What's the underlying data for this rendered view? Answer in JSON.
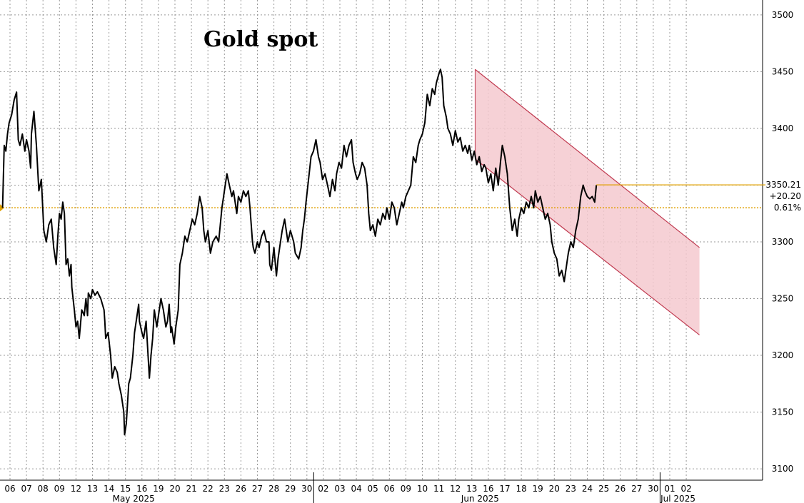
{
  "colors": {
    "price_line": "#000000",
    "grid": "#9a9a9a",
    "reference_line": "#e0a000",
    "channel_fill": "#f4c9cf",
    "channel_edge": "#c0394f",
    "badge_line": "#e0a000"
  },
  "chart_data": {
    "type": "line",
    "title": "Gold spot",
    "xlabel": "",
    "ylabel": "",
    "ylim": [
      3090,
      3510
    ],
    "y_ticks": [
      3100,
      3150,
      3200,
      3250,
      3300,
      3350,
      3400,
      3450,
      3500
    ],
    "x_labels": [
      "06",
      "07",
      "08",
      "09",
      "12",
      "13",
      "14",
      "15",
      "16",
      "19",
      "20",
      "21",
      "22",
      "23",
      "26",
      "27",
      "28",
      "29",
      "30",
      "02",
      "03",
      "04",
      "05",
      "06",
      "09",
      "10",
      "11",
      "12",
      "13",
      "16",
      "17",
      "18",
      "19",
      "20",
      "23",
      "24",
      "25",
      "26",
      "27",
      "30",
      "01",
      "02"
    ],
    "month_labels": [
      {
        "text": "May 2025",
        "at_index": 7.5
      },
      {
        "text": "Jun 2025",
        "at_index": 28.5
      },
      {
        "text": "Jul 2025",
        "at_index": 40.5
      }
    ],
    "month_separators": [
      18.5,
      39.5
    ],
    "reference_level": 3330,
    "last_price": {
      "value": "3350.21",
      "change": "+20.20",
      "pct": "0.61%"
    },
    "channel": {
      "upper": [
        {
          "x": 28.2,
          "y": 3452
        },
        {
          "x": 41.8,
          "y": 3295
        }
      ],
      "lower": [
        {
          "x": 28.2,
          "y": 3373
        },
        {
          "x": 41.8,
          "y": 3218
        }
      ]
    },
    "series": [
      {
        "points": [
          [
            -0.45,
            3330
          ],
          [
            -0.35,
            3385
          ],
          [
            -0.25,
            3380
          ],
          [
            -0.15,
            3395
          ],
          [
            -0.05,
            3405
          ],
          [
            0.1,
            3412
          ],
          [
            0.25,
            3425
          ],
          [
            0.4,
            3432
          ],
          [
            0.5,
            3390
          ],
          [
            0.6,
            3385
          ],
          [
            0.75,
            3395
          ],
          [
            0.9,
            3380
          ],
          [
            1.0,
            3390
          ],
          [
            1.15,
            3380
          ],
          [
            1.25,
            3365
          ],
          [
            1.3,
            3395
          ],
          [
            1.45,
            3415
          ],
          [
            1.6,
            3385
          ],
          [
            1.75,
            3345
          ],
          [
            1.9,
            3355
          ],
          [
            2.05,
            3310
          ],
          [
            2.2,
            3300
          ],
          [
            2.35,
            3315
          ],
          [
            2.5,
            3320
          ],
          [
            2.65,
            3295
          ],
          [
            2.8,
            3280
          ],
          [
            2.9,
            3305
          ],
          [
            3.0,
            3325
          ],
          [
            3.1,
            3320
          ],
          [
            3.2,
            3335
          ],
          [
            3.3,
            3325
          ],
          [
            3.4,
            3280
          ],
          [
            3.5,
            3285
          ],
          [
            3.6,
            3270
          ],
          [
            3.7,
            3280
          ],
          [
            3.75,
            3260
          ],
          [
            3.9,
            3240
          ],
          [
            4.0,
            3225
          ],
          [
            4.1,
            3230
          ],
          [
            4.2,
            3215
          ],
          [
            4.35,
            3240
          ],
          [
            4.5,
            3235
          ],
          [
            4.6,
            3250
          ],
          [
            4.7,
            3235
          ],
          [
            4.75,
            3255
          ],
          [
            4.9,
            3250
          ],
          [
            5.0,
            3258
          ],
          [
            5.15,
            3253
          ],
          [
            5.3,
            3256
          ],
          [
            5.5,
            3250
          ],
          [
            5.7,
            3240
          ],
          [
            5.75,
            3230
          ],
          [
            5.8,
            3215
          ],
          [
            5.95,
            3220
          ],
          [
            6.1,
            3200
          ],
          [
            6.2,
            3180
          ],
          [
            6.35,
            3190
          ],
          [
            6.5,
            3185
          ],
          [
            6.6,
            3175
          ],
          [
            6.75,
            3165
          ],
          [
            6.9,
            3150
          ],
          [
            6.95,
            3130
          ],
          [
            7.05,
            3140
          ],
          [
            7.2,
            3175
          ],
          [
            7.3,
            3180
          ],
          [
            7.45,
            3200
          ],
          [
            7.55,
            3220
          ],
          [
            7.7,
            3235
          ],
          [
            7.8,
            3245
          ],
          [
            7.85,
            3230
          ],
          [
            8.0,
            3220
          ],
          [
            8.1,
            3215
          ],
          [
            8.25,
            3230
          ],
          [
            8.35,
            3205
          ],
          [
            8.45,
            3180
          ],
          [
            8.55,
            3200
          ],
          [
            8.65,
            3215
          ],
          [
            8.75,
            3240
          ],
          [
            8.9,
            3225
          ],
          [
            9.0,
            3235
          ],
          [
            9.15,
            3250
          ],
          [
            9.3,
            3240
          ],
          [
            9.45,
            3225
          ],
          [
            9.55,
            3230
          ],
          [
            9.65,
            3245
          ],
          [
            9.75,
            3220
          ],
          [
            9.8,
            3225
          ],
          [
            9.95,
            3210
          ],
          [
            10.05,
            3225
          ],
          [
            10.2,
            3240
          ],
          [
            10.3,
            3280
          ],
          [
            10.45,
            3290
          ],
          [
            10.6,
            3305
          ],
          [
            10.75,
            3300
          ],
          [
            10.9,
            3310
          ],
          [
            11.05,
            3320
          ],
          [
            11.2,
            3315
          ],
          [
            11.35,
            3325
          ],
          [
            11.5,
            3340
          ],
          [
            11.65,
            3330
          ],
          [
            11.75,
            3310
          ],
          [
            11.85,
            3300
          ],
          [
            12.0,
            3310
          ],
          [
            12.15,
            3290
          ],
          [
            12.3,
            3300
          ],
          [
            12.5,
            3305
          ],
          [
            12.65,
            3300
          ],
          [
            12.75,
            3315
          ],
          [
            12.85,
            3330
          ],
          [
            13.0,
            3345
          ],
          [
            13.15,
            3360
          ],
          [
            13.3,
            3350
          ],
          [
            13.45,
            3340
          ],
          [
            13.55,
            3345
          ],
          [
            13.65,
            3335
          ],
          [
            13.75,
            3325
          ],
          [
            13.85,
            3340
          ],
          [
            14.0,
            3335
          ],
          [
            14.15,
            3345
          ],
          [
            14.3,
            3340
          ],
          [
            14.45,
            3345
          ],
          [
            14.55,
            3330
          ],
          [
            14.7,
            3300
          ],
          [
            14.75,
            3295
          ],
          [
            14.85,
            3290
          ],
          [
            15.0,
            3300
          ],
          [
            15.1,
            3295
          ],
          [
            15.25,
            3305
          ],
          [
            15.4,
            3310
          ],
          [
            15.55,
            3300
          ],
          [
            15.7,
            3300
          ],
          [
            15.75,
            3280
          ],
          [
            15.85,
            3275
          ],
          [
            16.0,
            3295
          ],
          [
            16.15,
            3270
          ],
          [
            16.25,
            3285
          ],
          [
            16.4,
            3300
          ],
          [
            16.5,
            3310
          ],
          [
            16.65,
            3320
          ],
          [
            16.75,
            3310
          ],
          [
            16.85,
            3300
          ],
          [
            17.0,
            3310
          ],
          [
            17.1,
            3305
          ],
          [
            17.2,
            3300
          ],
          [
            17.3,
            3290
          ],
          [
            17.5,
            3285
          ],
          [
            17.65,
            3295
          ],
          [
            17.75,
            3310
          ],
          [
            17.85,
            3320
          ],
          [
            17.95,
            3335
          ],
          [
            18.1,
            3355
          ],
          [
            18.25,
            3375
          ],
          [
            18.4,
            3380
          ],
          [
            18.55,
            3390
          ],
          [
            18.7,
            3375
          ],
          [
            18.8,
            3370
          ],
          [
            18.95,
            3355
          ],
          [
            19.1,
            3360
          ],
          [
            19.25,
            3350
          ],
          [
            19.4,
            3340
          ],
          [
            19.55,
            3355
          ],
          [
            19.7,
            3345
          ],
          [
            19.8,
            3360
          ],
          [
            19.95,
            3370
          ],
          [
            20.1,
            3365
          ],
          [
            20.25,
            3385
          ],
          [
            20.4,
            3375
          ],
          [
            20.55,
            3385
          ],
          [
            20.7,
            3390
          ],
          [
            20.8,
            3370
          ],
          [
            20.95,
            3360
          ],
          [
            21.05,
            3355
          ],
          [
            21.2,
            3360
          ],
          [
            21.35,
            3370
          ],
          [
            21.5,
            3365
          ],
          [
            21.65,
            3350
          ],
          [
            21.75,
            3325
          ],
          [
            21.85,
            3310
          ],
          [
            22.0,
            3315
          ],
          [
            22.15,
            3305
          ],
          [
            22.3,
            3320
          ],
          [
            22.45,
            3315
          ],
          [
            22.6,
            3325
          ],
          [
            22.75,
            3320
          ],
          [
            22.85,
            3330
          ],
          [
            23.0,
            3320
          ],
          [
            23.15,
            3335
          ],
          [
            23.3,
            3330
          ],
          [
            23.45,
            3315
          ],
          [
            23.6,
            3325
          ],
          [
            23.75,
            3335
          ],
          [
            23.85,
            3330
          ],
          [
            24.0,
            3340
          ],
          [
            24.15,
            3345
          ],
          [
            24.3,
            3350
          ],
          [
            24.45,
            3375
          ],
          [
            24.6,
            3370
          ],
          [
            24.75,
            3385
          ],
          [
            24.85,
            3390
          ],
          [
            25.0,
            3395
          ],
          [
            25.15,
            3405
          ],
          [
            25.3,
            3430
          ],
          [
            25.45,
            3420
          ],
          [
            25.6,
            3435
          ],
          [
            25.75,
            3430
          ],
          [
            25.85,
            3440
          ],
          [
            26.0,
            3448
          ],
          [
            26.1,
            3452
          ],
          [
            26.2,
            3445
          ],
          [
            26.3,
            3420
          ],
          [
            26.45,
            3410
          ],
          [
            26.55,
            3400
          ],
          [
            26.7,
            3395
          ],
          [
            26.85,
            3385
          ],
          [
            27.0,
            3398
          ],
          [
            27.15,
            3388
          ],
          [
            27.3,
            3392
          ],
          [
            27.45,
            3380
          ],
          [
            27.6,
            3385
          ],
          [
            27.75,
            3378
          ],
          [
            27.85,
            3385
          ],
          [
            28.0,
            3372
          ],
          [
            28.15,
            3380
          ],
          [
            28.3,
            3368
          ],
          [
            28.45,
            3375
          ],
          [
            28.6,
            3362
          ],
          [
            28.75,
            3368
          ],
          [
            28.85,
            3365
          ],
          [
            29.0,
            3352
          ],
          [
            29.15,
            3360
          ],
          [
            29.3,
            3345
          ],
          [
            29.45,
            3365
          ],
          [
            29.6,
            3350
          ],
          [
            29.75,
            3372
          ],
          [
            29.85,
            3385
          ],
          [
            30.0,
            3375
          ],
          [
            30.15,
            3360
          ],
          [
            30.3,
            3330
          ],
          [
            30.45,
            3310
          ],
          [
            30.6,
            3320
          ],
          [
            30.75,
            3305
          ],
          [
            30.85,
            3320
          ],
          [
            31.0,
            3330
          ],
          [
            31.15,
            3325
          ],
          [
            31.3,
            3335
          ],
          [
            31.45,
            3330
          ],
          [
            31.6,
            3340
          ],
          [
            31.75,
            3330
          ],
          [
            31.85,
            3345
          ],
          [
            32.0,
            3335
          ],
          [
            32.15,
            3340
          ],
          [
            32.3,
            3330
          ],
          [
            32.45,
            3320
          ],
          [
            32.6,
            3325
          ],
          [
            32.75,
            3315
          ],
          [
            32.85,
            3300
          ],
          [
            33.0,
            3290
          ],
          [
            33.15,
            3285
          ],
          [
            33.3,
            3270
          ],
          [
            33.45,
            3275
          ],
          [
            33.6,
            3265
          ],
          [
            33.75,
            3280
          ],
          [
            33.85,
            3290
          ],
          [
            34.0,
            3300
          ],
          [
            34.15,
            3295
          ],
          [
            34.3,
            3310
          ],
          [
            34.45,
            3320
          ],
          [
            34.6,
            3340
          ],
          [
            34.75,
            3350
          ],
          [
            34.85,
            3345
          ],
          [
            35.0,
            3340
          ],
          [
            35.15,
            3338
          ],
          [
            35.3,
            3340
          ],
          [
            35.45,
            3335
          ],
          [
            35.55,
            3350
          ]
        ]
      }
    ]
  }
}
